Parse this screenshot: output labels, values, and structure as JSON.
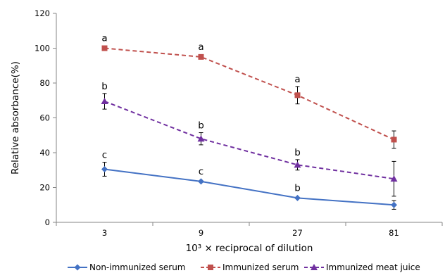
{
  "chart_data": {
    "type": "line",
    "title": "",
    "xlabel": "10³ × reciprocal  of dilution",
    "ylabel": "Relative absorbance(%)",
    "categories": [
      "3",
      "9",
      "27",
      "81"
    ],
    "ylim": [
      0,
      120
    ],
    "yticks": [
      "0",
      "20",
      "40",
      "60",
      "80",
      "100",
      "120"
    ],
    "grid": false,
    "legend_position": "bottom",
    "series": [
      {
        "name": "Non-immunized serum",
        "color": "#4472C4",
        "dash": "solid",
        "marker": "diamond",
        "values": [
          30.5,
          23.5,
          14,
          10
        ],
        "errors": [
          4,
          0,
          0,
          2.5
        ],
        "labels": [
          "c",
          "c",
          "b",
          ""
        ]
      },
      {
        "name": "Immunized serum",
        "color": "#C0504D",
        "dash": "dashed",
        "marker": "square",
        "values": [
          100,
          95,
          73,
          47.5
        ],
        "errors": [
          0,
          0,
          5,
          5
        ],
        "labels": [
          "a",
          "a",
          "a",
          ""
        ]
      },
      {
        "name": "Immunized meat juice",
        "color": "#7030A0",
        "dash": "dashed",
        "marker": "triangle",
        "values": [
          69.5,
          48,
          33,
          25
        ],
        "errors": [
          4.5,
          3.5,
          3,
          10
        ],
        "labels": [
          "b",
          "b",
          "b",
          ""
        ]
      }
    ]
  }
}
